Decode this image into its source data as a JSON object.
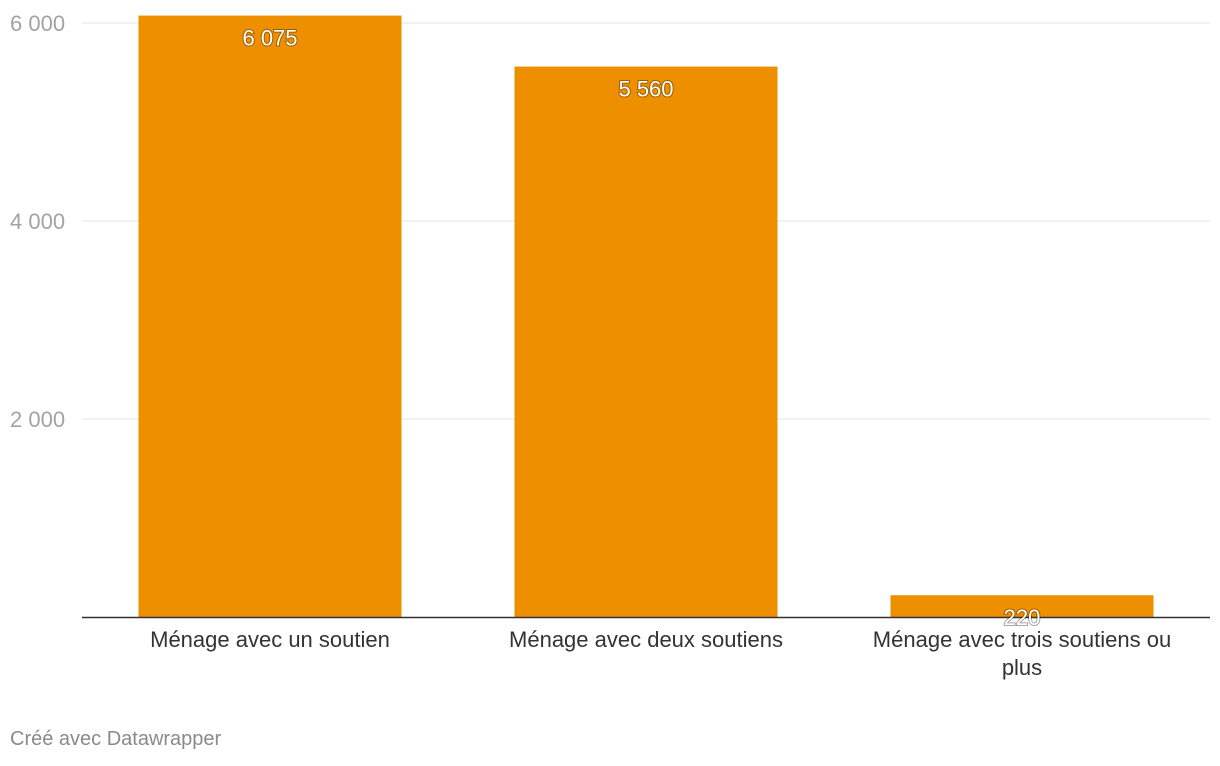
{
  "chart_data": {
    "type": "bar",
    "categories": [
      [
        "Ménage avec un soutien"
      ],
      [
        "Ménage avec deux soutiens"
      ],
      [
        "Ménage avec trois soutiens ou",
        "plus"
      ]
    ],
    "values": [
      6075,
      5560,
      220
    ],
    "value_labels": [
      "6 075",
      "5 560",
      "220"
    ],
    "yticks": [
      {
        "value": 2000,
        "label": "2 000"
      },
      {
        "value": 4000,
        "label": "4 000"
      },
      {
        "value": 6000,
        "label": "6 000"
      }
    ],
    "ylim": [
      0,
      6000
    ],
    "grid": true,
    "bar_color": "#ee8f00",
    "title": "",
    "xlabel": "",
    "ylabel": ""
  },
  "footer": {
    "credit": "Créé avec Datawrapper"
  }
}
